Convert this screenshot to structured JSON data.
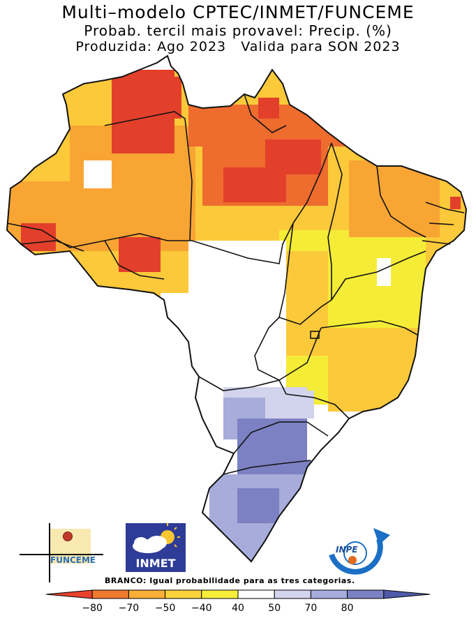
{
  "header": {
    "title": "Multi–modelo CPTEC/INMET/FUNCEME",
    "subtitle": "Probab. tercil mais provavel: Precip. (%)",
    "produced": "Produzida: Ago 2023",
    "valid": "Valida para SON 2023"
  },
  "logos": {
    "funceme": "FUNCEME",
    "inmet": "INMET",
    "inpe": "INPE"
  },
  "legend": {
    "note": "BRANCO: Igual probabilidade para as tres categorias.",
    "tick_labels": [
      "−80",
      "−70",
      "−50",
      "−40",
      "40",
      "50",
      "70",
      "80"
    ],
    "colors": [
      "#e8422c",
      "#f07a2e",
      "#f9ae36",
      "#fad33c",
      "#f6ef3a",
      "#ffffff",
      "#d3d4ee",
      "#a6acdc",
      "#7a81c4",
      "#4f5aa9"
    ]
  },
  "map_colors": {
    "dark_red": "#e3402c",
    "orange_red": "#ee6c2e",
    "orange": "#f8a534",
    "light_orange": "#fbc93a",
    "yellow": "#f5ec37",
    "white": "#ffffff",
    "light_blue": "#d2d3ec",
    "mid_blue": "#a7acda",
    "blue": "#7b81c2",
    "border": "#111111"
  }
}
